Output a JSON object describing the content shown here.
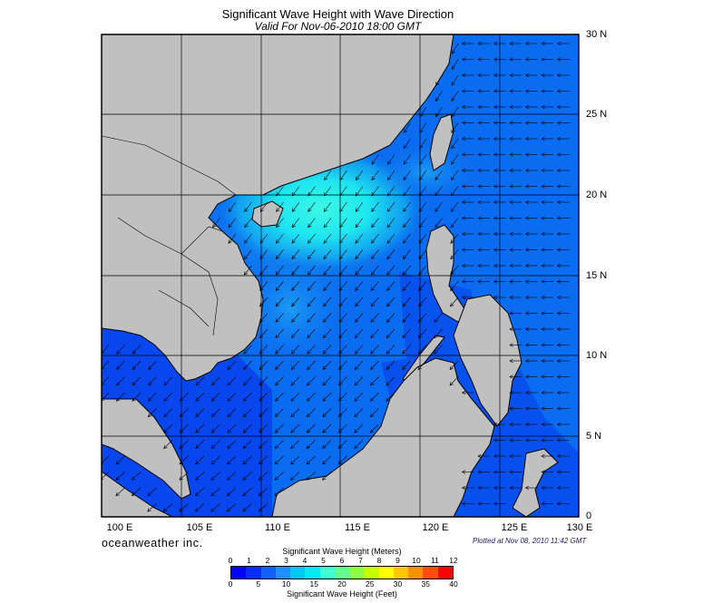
{
  "header": {
    "title": "Significant Wave Height with Wave Direction",
    "subtitle": "Valid For Nov-06-2010 18:00 GMT"
  },
  "map": {
    "lon_labels": [
      "100 E",
      "105 E",
      "110 E",
      "115 E",
      "120 E",
      "125 E",
      "130 E"
    ],
    "lat_labels": [
      "30 N",
      "25 N",
      "20 N",
      "15 N",
      "10 N",
      "5 N",
      "0"
    ],
    "land_color": "#c0c0c0",
    "grid": true
  },
  "footer": {
    "brand": "oceanweather inc.",
    "plotted": "Plotted at Nov 08, 2010 11:42 GMT"
  },
  "legend": {
    "meters_title": "Significant Wave Height (Meters)",
    "feet_title": "Significant Wave Height (Feet)",
    "meters_ticks": [
      "0",
      "1",
      "2",
      "3",
      "4",
      "5",
      "6",
      "7",
      "8",
      "9",
      "10",
      "11",
      "12"
    ],
    "feet_ticks": [
      "0",
      "5",
      "10",
      "15",
      "20",
      "25",
      "30",
      "35",
      "40"
    ],
    "colors": [
      "#0000ff",
      "#0a2cff",
      "#1460ff",
      "#1e90ff",
      "#00c8ff",
      "#00e8f0",
      "#40ffd0",
      "#60ff90",
      "#90ff40",
      "#c8ff00",
      "#ffff00",
      "#ffc800",
      "#ff9000",
      "#ff5000",
      "#ff0000"
    ]
  }
}
